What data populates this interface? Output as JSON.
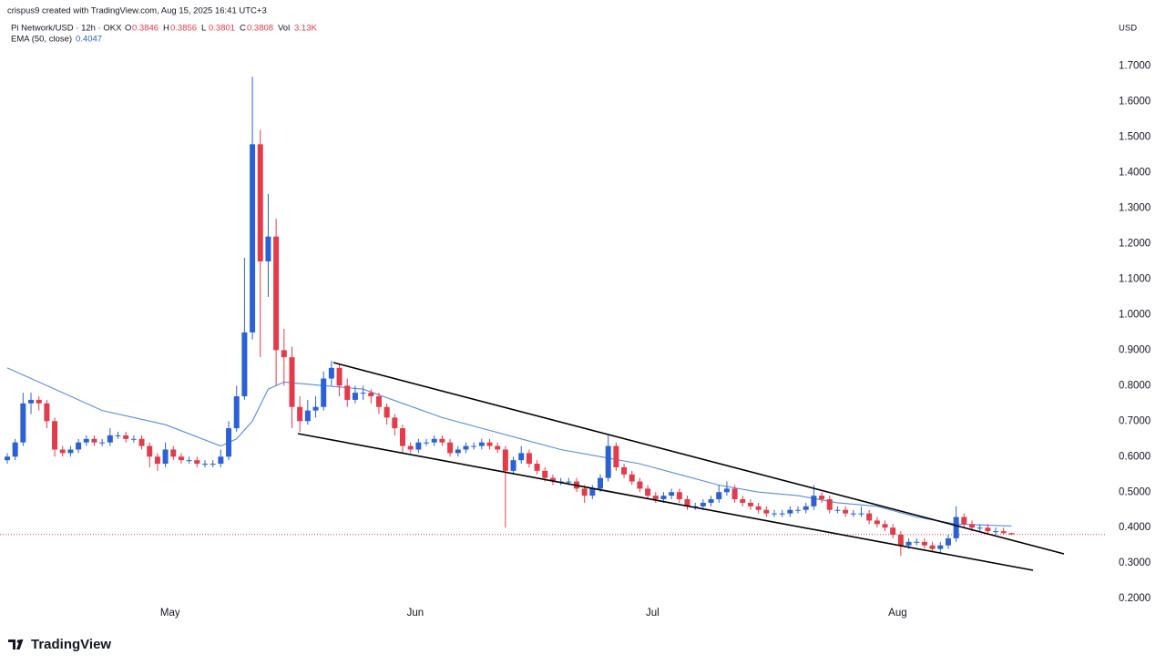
{
  "chart_data": {
    "type": "candlestick",
    "attribution": "crispus9 created with TradingView.com, Aug 15, 2025 16:41 UTC+3",
    "symbol": "Pi Network/USD · 12h · OKX",
    "ohlc_labels": [
      "O",
      "H",
      "L",
      "C",
      "Vol"
    ],
    "volume": "3.13K",
    "currency": "USD",
    "brand": "TradingView",
    "up_color": "#2a62d6",
    "down_color": "#e23b4a",
    "x": [
      0,
      1,
      2,
      3,
      4,
      5,
      6,
      7,
      8,
      9,
      10,
      11,
      12,
      13,
      14,
      15,
      16,
      17,
      18,
      19,
      20,
      21,
      22,
      23,
      24,
      25,
      26,
      27,
      28,
      29,
      30,
      31,
      32,
      33,
      34,
      35,
      36,
      37,
      38,
      39,
      40,
      41,
      42,
      43,
      44,
      45,
      46,
      47,
      48,
      49,
      50,
      51,
      52,
      53,
      54,
      55,
      56,
      57,
      58,
      59,
      60,
      61,
      62,
      63,
      64,
      65,
      66,
      67,
      68,
      69,
      70,
      71,
      72,
      73,
      74,
      75,
      76,
      77,
      78,
      79,
      80,
      81,
      82,
      83,
      84,
      85,
      86,
      87,
      88,
      89,
      90,
      91,
      92,
      93,
      94,
      95,
      96,
      97,
      98,
      99,
      100,
      101,
      102,
      103,
      104,
      105,
      106,
      107,
      108,
      109,
      110,
      111,
      112,
      113,
      114,
      115,
      116,
      117,
      118,
      119,
      120,
      121,
      122,
      123,
      124,
      125,
      126,
      127
    ],
    "open": [
      0.59,
      0.6,
      0.64,
      0.75,
      0.76,
      0.75,
      0.7,
      0.62,
      0.61,
      0.62,
      0.64,
      0.65,
      0.64,
      0.64,
      0.66,
      0.66,
      0.65,
      0.65,
      0.63,
      0.6,
      0.58,
      0.62,
      0.6,
      0.59,
      0.59,
      0.58,
      0.58,
      0.58,
      0.6,
      0.68,
      0.77,
      0.95,
      1.48,
      1.15,
      1.22,
      0.9,
      0.88,
      0.74,
      0.7,
      0.73,
      0.74,
      0.82,
      0.85,
      0.8,
      0.76,
      0.78,
      0.78,
      0.77,
      0.74,
      0.71,
      0.68,
      0.63,
      0.62,
      0.64,
      0.64,
      0.65,
      0.64,
      0.61,
      0.62,
      0.63,
      0.63,
      0.64,
      0.63,
      0.62,
      0.56,
      0.59,
      0.61,
      0.58,
      0.56,
      0.54,
      0.53,
      0.53,
      0.53,
      0.51,
      0.49,
      0.51,
      0.54,
      0.63,
      0.57,
      0.55,
      0.53,
      0.51,
      0.49,
      0.48,
      0.49,
      0.5,
      0.48,
      0.46,
      0.46,
      0.47,
      0.48,
      0.5,
      0.51,
      0.48,
      0.47,
      0.46,
      0.45,
      0.44,
      0.44,
      0.44,
      0.45,
      0.45,
      0.46,
      0.49,
      0.48,
      0.45,
      0.45,
      0.44,
      0.44,
      0.44,
      0.42,
      0.41,
      0.4,
      0.38,
      0.35,
      0.36,
      0.36,
      0.35,
      0.34,
      0.35,
      0.37,
      0.43,
      0.41,
      0.4,
      0.4,
      0.39,
      0.39,
      0.3846
    ],
    "high": [
      0.61,
      0.65,
      0.78,
      0.78,
      0.77,
      0.76,
      0.71,
      0.63,
      0.63,
      0.65,
      0.66,
      0.66,
      0.65,
      0.68,
      0.67,
      0.67,
      0.66,
      0.66,
      0.64,
      0.61,
      0.64,
      0.63,
      0.61,
      0.6,
      0.6,
      0.59,
      0.59,
      0.62,
      0.7,
      0.8,
      1.16,
      1.67,
      1.52,
      1.34,
      1.27,
      0.96,
      0.91,
      0.77,
      0.76,
      0.77,
      0.84,
      0.87,
      0.86,
      0.82,
      0.8,
      0.8,
      0.79,
      0.78,
      0.75,
      0.72,
      0.69,
      0.64,
      0.65,
      0.65,
      0.66,
      0.66,
      0.65,
      0.63,
      0.64,
      0.64,
      0.65,
      0.65,
      0.64,
      0.63,
      0.6,
      0.63,
      0.62,
      0.59,
      0.57,
      0.55,
      0.54,
      0.54,
      0.54,
      0.52,
      0.52,
      0.55,
      0.66,
      0.64,
      0.58,
      0.56,
      0.54,
      0.52,
      0.5,
      0.5,
      0.51,
      0.51,
      0.49,
      0.47,
      0.48,
      0.49,
      0.52,
      0.53,
      0.52,
      0.49,
      0.48,
      0.47,
      0.46,
      0.45,
      0.45,
      0.46,
      0.46,
      0.47,
      0.52,
      0.5,
      0.49,
      0.46,
      0.46,
      0.45,
      0.46,
      0.45,
      0.43,
      0.42,
      0.41,
      0.39,
      0.37,
      0.37,
      0.37,
      0.36,
      0.36,
      0.38,
      0.46,
      0.44,
      0.42,
      0.41,
      0.41,
      0.4,
      0.4,
      0.3856
    ],
    "low": [
      0.58,
      0.59,
      0.63,
      0.72,
      0.73,
      0.68,
      0.6,
      0.6,
      0.6,
      0.61,
      0.63,
      0.63,
      0.63,
      0.63,
      0.65,
      0.64,
      0.64,
      0.62,
      0.57,
      0.56,
      0.57,
      0.59,
      0.58,
      0.58,
      0.57,
      0.57,
      0.57,
      0.57,
      0.59,
      0.67,
      0.76,
      0.93,
      0.88,
      1.05,
      0.8,
      0.8,
      0.68,
      0.67,
      0.69,
      0.71,
      0.73,
      0.8,
      0.77,
      0.74,
      0.75,
      0.76,
      0.75,
      0.72,
      0.69,
      0.66,
      0.61,
      0.61,
      0.61,
      0.63,
      0.63,
      0.63,
      0.6,
      0.6,
      0.61,
      0.62,
      0.62,
      0.62,
      0.61,
      0.4,
      0.55,
      0.58,
      0.57,
      0.55,
      0.53,
      0.52,
      0.52,
      0.52,
      0.5,
      0.47,
      0.48,
      0.5,
      0.53,
      0.56,
      0.54,
      0.52,
      0.5,
      0.48,
      0.47,
      0.47,
      0.48,
      0.47,
      0.45,
      0.45,
      0.45,
      0.46,
      0.47,
      0.49,
      0.47,
      0.46,
      0.45,
      0.44,
      0.43,
      0.43,
      0.43,
      0.43,
      0.44,
      0.44,
      0.45,
      0.47,
      0.44,
      0.44,
      0.43,
      0.43,
      0.43,
      0.41,
      0.4,
      0.39,
      0.37,
      0.32,
      0.34,
      0.35,
      0.34,
      0.33,
      0.33,
      0.34,
      0.36,
      0.4,
      0.39,
      0.39,
      0.38,
      0.38,
      0.38,
      0.3801
    ],
    "close": [
      0.6,
      0.64,
      0.75,
      0.76,
      0.75,
      0.7,
      0.62,
      0.61,
      0.62,
      0.64,
      0.65,
      0.64,
      0.64,
      0.66,
      0.66,
      0.65,
      0.65,
      0.63,
      0.6,
      0.58,
      0.62,
      0.6,
      0.59,
      0.59,
      0.58,
      0.58,
      0.58,
      0.6,
      0.68,
      0.77,
      0.95,
      1.48,
      1.15,
      1.22,
      0.9,
      0.88,
      0.74,
      0.7,
      0.73,
      0.74,
      0.82,
      0.85,
      0.8,
      0.76,
      0.78,
      0.78,
      0.77,
      0.74,
      0.71,
      0.68,
      0.63,
      0.62,
      0.64,
      0.64,
      0.65,
      0.64,
      0.61,
      0.62,
      0.63,
      0.63,
      0.64,
      0.63,
      0.62,
      0.56,
      0.59,
      0.61,
      0.58,
      0.56,
      0.54,
      0.53,
      0.53,
      0.53,
      0.51,
      0.49,
      0.51,
      0.54,
      0.63,
      0.57,
      0.55,
      0.53,
      0.51,
      0.49,
      0.48,
      0.49,
      0.5,
      0.48,
      0.46,
      0.46,
      0.47,
      0.48,
      0.5,
      0.51,
      0.48,
      0.47,
      0.46,
      0.45,
      0.44,
      0.44,
      0.44,
      0.45,
      0.45,
      0.46,
      0.49,
      0.48,
      0.45,
      0.45,
      0.44,
      0.44,
      0.44,
      0.42,
      0.41,
      0.4,
      0.38,
      0.35,
      0.36,
      0.36,
      0.35,
      0.34,
      0.35,
      0.37,
      0.43,
      0.41,
      0.4,
      0.4,
      0.39,
      0.39,
      0.3846,
      0.3808
    ],
    "ema": {
      "name": "EMA (50, close)",
      "color": "#5a8ae6",
      "x": [
        0,
        5,
        12,
        20,
        27,
        29,
        31,
        33,
        35,
        40,
        45,
        50,
        55,
        60,
        65,
        70,
        75,
        80,
        85,
        90,
        95,
        100,
        105,
        110,
        115,
        120,
        127
      ],
      "values": [
        0.85,
        0.8,
        0.73,
        0.69,
        0.63,
        0.65,
        0.7,
        0.79,
        0.81,
        0.8,
        0.79,
        0.75,
        0.71,
        0.68,
        0.65,
        0.62,
        0.6,
        0.58,
        0.55,
        0.52,
        0.5,
        0.49,
        0.47,
        0.46,
        0.43,
        0.41,
        0.4047
      ]
    },
    "xlim": [
      -0.92,
      139.05
    ],
    "xticks": [
      {
        "value": 20.6,
        "label": "May"
      },
      {
        "value": 51.6,
        "label": "Jun"
      },
      {
        "value": 81.6,
        "label": "Jul"
      },
      {
        "value": 112.6,
        "label": "Aug"
      }
    ],
    "ylim": [
      0.185,
      1.835
    ],
    "yticks": [
      {
        "value": 0.2,
        "label": "0.2000"
      },
      {
        "value": 0.3,
        "label": "0.3000"
      },
      {
        "value": 0.4,
        "label": "0.4000"
      },
      {
        "value": 0.5,
        "label": "0.5000"
      },
      {
        "value": 0.6,
        "label": "0.6000"
      },
      {
        "value": 0.7,
        "label": "0.7000"
      },
      {
        "value": 0.8,
        "label": "0.8000"
      },
      {
        "value": 0.9,
        "label": "0.9000"
      },
      {
        "value": 1.0,
        "label": "1.0000"
      },
      {
        "value": 1.1,
        "label": "1.1000"
      },
      {
        "value": 1.2,
        "label": "1.2000"
      },
      {
        "value": 1.3,
        "label": "1.3000"
      },
      {
        "value": 1.4,
        "label": "1.4000"
      },
      {
        "value": 1.5,
        "label": "1.5000"
      },
      {
        "value": 1.6,
        "label": "1.6000"
      },
      {
        "value": 1.7,
        "label": "1.7000"
      }
    ]
  }
}
